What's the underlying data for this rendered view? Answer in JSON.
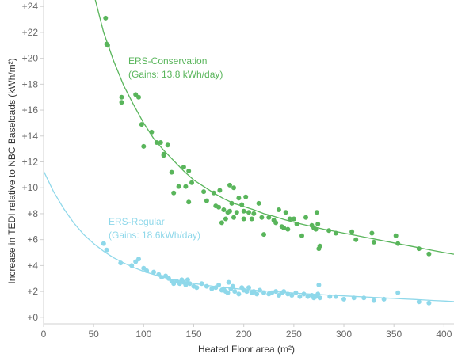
{
  "chart_data": {
    "type": "scatter",
    "xlabel": "Heated Floor area (m²)",
    "ylabel": "Increase in TEDI relative to NBC Baseloads (kWh/m²)",
    "xlim": [
      0,
      410
    ],
    "ylim": [
      -0.5,
      24.5
    ],
    "x_ticks": [
      {
        "value": 0,
        "label": "0"
      },
      {
        "value": 50,
        "label": "50"
      },
      {
        "value": 100,
        "label": "100"
      },
      {
        "value": 150,
        "label": "150"
      },
      {
        "value": 200,
        "label": "200"
      },
      {
        "value": 250,
        "label": "250"
      },
      {
        "value": 300,
        "label": "300"
      },
      {
        "value": 350,
        "label": "350"
      },
      {
        "value": 400,
        "label": "400"
      }
    ],
    "y_ticks": [
      {
        "value": 0,
        "label": "+0"
      },
      {
        "value": 2,
        "label": "+2"
      },
      {
        "value": 4,
        "label": "+4"
      },
      {
        "value": 6,
        "label": "+6"
      },
      {
        "value": 8,
        "label": "+8"
      },
      {
        "value": 10,
        "label": "+10"
      },
      {
        "value": 12,
        "label": "+12"
      },
      {
        "value": 14,
        "label": "+14"
      },
      {
        "value": 16,
        "label": "+16"
      },
      {
        "value": 18,
        "label": "+18"
      },
      {
        "value": 20,
        "label": "+20"
      },
      {
        "value": 22,
        "label": "+22"
      },
      {
        "value": 24,
        "label": "+24"
      }
    ],
    "grid": false,
    "series": [
      {
        "name": "ERS-Conservation",
        "annotation": [
          "ERS-Conservation",
          "(Gains: 13.8 kWh/day)"
        ],
        "color": "#59b55b",
        "trend_color": "#59b55b",
        "trend_x": [
          0,
          10,
          20,
          30,
          40,
          50,
          60,
          70,
          80,
          90,
          100,
          110,
          120,
          130,
          140,
          150,
          160,
          170,
          180,
          190,
          200,
          210,
          220,
          230,
          240,
          250,
          260,
          270,
          280,
          290,
          300,
          310,
          320,
          330,
          340,
          350,
          360,
          370,
          380,
          390,
          400,
          410
        ],
        "trend_y": [
          60,
          50,
          42,
          35,
          29.5,
          25,
          22.0,
          19.8,
          17.9,
          16.4,
          15.0,
          13.8,
          12.9,
          12.1,
          11.3,
          10.6,
          10.1,
          9.6,
          9.15,
          8.8,
          8.55,
          8.3,
          8.0,
          7.8,
          7.55,
          7.35,
          7.15,
          6.98,
          6.8,
          6.65,
          6.5,
          6.35,
          6.2,
          6.05,
          5.9,
          5.75,
          5.6,
          5.45,
          5.3,
          5.15,
          5.0,
          4.87
        ],
        "x": [
          62,
          63,
          64,
          78,
          78,
          92,
          95,
          98,
          100,
          108,
          113,
          117,
          120,
          120,
          124,
          128,
          130,
          135,
          140,
          142,
          145,
          145,
          148,
          160,
          163,
          170,
          172,
          175,
          176,
          178,
          180,
          182,
          184,
          186,
          186,
          188,
          190,
          190,
          193,
          195,
          198,
          200,
          200,
          202,
          205,
          208,
          210,
          215,
          218,
          220,
          225,
          230,
          232,
          235,
          238,
          240,
          242,
          244,
          246,
          250,
          253,
          258,
          262,
          268,
          270,
          272,
          273,
          274,
          275,
          276,
          285,
          292,
          308,
          312,
          328,
          330,
          352,
          354,
          375,
          385
        ],
        "y": [
          23.1,
          21.1,
          21.0,
          17.0,
          16.6,
          17.2,
          17.0,
          14.9,
          13.2,
          14.3,
          13.5,
          13.5,
          12.6,
          12.5,
          13.3,
          11.2,
          9.6,
          10.1,
          11.6,
          10.1,
          11.3,
          8.9,
          10.4,
          9.7,
          9.0,
          9.6,
          8.6,
          8.5,
          9.8,
          7.3,
          8.3,
          7.6,
          8.1,
          10.2,
          8.2,
          8.8,
          7.7,
          10.0,
          8.1,
          9.2,
          8.7,
          8.2,
          7.6,
          9.3,
          8.1,
          7.6,
          8.0,
          8.8,
          7.7,
          6.4,
          7.7,
          7.5,
          7.3,
          8.3,
          7.0,
          6.9,
          8.1,
          6.8,
          7.6,
          7.6,
          7.2,
          6.3,
          7.7,
          7.1,
          6.9,
          6.8,
          8.1,
          7.2,
          5.3,
          5.5,
          6.7,
          6.5,
          6.6,
          6.0,
          6.5,
          5.8,
          6.3,
          5.7,
          5.3,
          4.9
        ]
      },
      {
        "name": "ERS-Regular",
        "annotation": [
          "ERS-Regular",
          "(Gains: 18.6kWh/day)"
        ],
        "color": "#8fd8ea",
        "trend_color": "#8fd8ea",
        "trend_x": [
          0,
          10,
          20,
          30,
          40,
          50,
          60,
          70,
          80,
          90,
          100,
          110,
          120,
          130,
          140,
          150,
          160,
          170,
          180,
          190,
          200,
          210,
          220,
          230,
          240,
          250,
          260,
          270,
          280,
          290,
          300,
          310,
          320,
          330,
          340,
          350,
          360,
          370,
          380,
          390,
          400,
          410
        ],
        "trend_y": [
          11.3,
          9.7,
          8.4,
          7.3,
          6.4,
          5.7,
          5.1,
          4.6,
          4.2,
          3.85,
          3.55,
          3.3,
          3.08,
          2.9,
          2.75,
          2.62,
          2.5,
          2.4,
          2.31,
          2.23,
          2.16,
          2.1,
          2.04,
          1.98,
          1.93,
          1.88,
          1.83,
          1.78,
          1.74,
          1.7,
          1.66,
          1.62,
          1.58,
          1.54,
          1.5,
          1.46,
          1.42,
          1.38,
          1.34,
          1.3,
          1.26,
          1.22
        ],
        "x": [
          60,
          63,
          77,
          88,
          92,
          95,
          100,
          103,
          110,
          115,
          118,
          122,
          125,
          128,
          130,
          133,
          136,
          138,
          140,
          142,
          144,
          146,
          150,
          153,
          158,
          163,
          168,
          172,
          175,
          178,
          180,
          182,
          184,
          185,
          187,
          189,
          191,
          195,
          198,
          200,
          203,
          205,
          208,
          210,
          213,
          216,
          220,
          225,
          228,
          232,
          235,
          238,
          240,
          244,
          248,
          252,
          256,
          260,
          264,
          268,
          270,
          272,
          274,
          275,
          276,
          286,
          292,
          300,
          310,
          320,
          330,
          340,
          354,
          375,
          385
        ],
        "y": [
          5.7,
          5.2,
          4.2,
          4.0,
          4.3,
          4.5,
          3.8,
          3.6,
          3.5,
          3.3,
          3.1,
          3.2,
          3.0,
          2.8,
          2.6,
          2.8,
          2.6,
          2.9,
          2.7,
          2.5,
          2.9,
          2.6,
          2.4,
          2.3,
          2.6,
          2.4,
          2.2,
          2.3,
          2.5,
          2.1,
          2.2,
          2.0,
          1.9,
          2.7,
          2.2,
          2.4,
          2.0,
          1.8,
          2.3,
          2.1,
          2.0,
          2.3,
          1.9,
          2.0,
          1.8,
          2.1,
          1.9,
          1.8,
          1.9,
          2.0,
          1.7,
          1.9,
          2.0,
          1.8,
          1.7,
          1.9,
          1.6,
          1.8,
          1.6,
          1.7,
          1.5,
          1.6,
          1.8,
          2.5,
          1.5,
          1.6,
          1.6,
          1.4,
          1.5,
          1.5,
          1.3,
          1.4,
          1.9,
          1.2,
          1.1
        ]
      }
    ]
  }
}
